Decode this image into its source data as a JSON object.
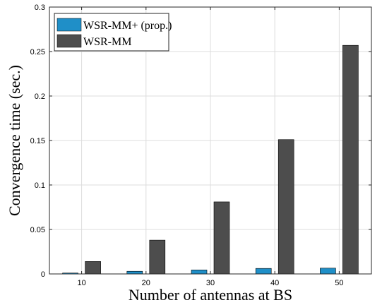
{
  "chart_data": {
    "type": "bar",
    "xlabel": "Number of antennas at BS",
    "ylabel": "Convergence time (sec.)",
    "categories": [
      "10",
      "20",
      "30",
      "40",
      "50"
    ],
    "ylim": [
      0,
      0.3
    ],
    "yticks": [
      "0",
      "0.05",
      "0.1",
      "0.15",
      "0.2",
      "0.25",
      "0.3"
    ],
    "series": [
      {
        "name": "WSR-MM+ (prop.)",
        "color": "#1f8fc8",
        "values": [
          0.001,
          0.003,
          0.0045,
          0.0062,
          0.0065
        ]
      },
      {
        "name": "WSR-MM",
        "color": "#4d4d4d",
        "values": [
          0.014,
          0.038,
          0.081,
          0.151,
          0.257
        ]
      }
    ],
    "legend": "top-left",
    "grid": true
  }
}
